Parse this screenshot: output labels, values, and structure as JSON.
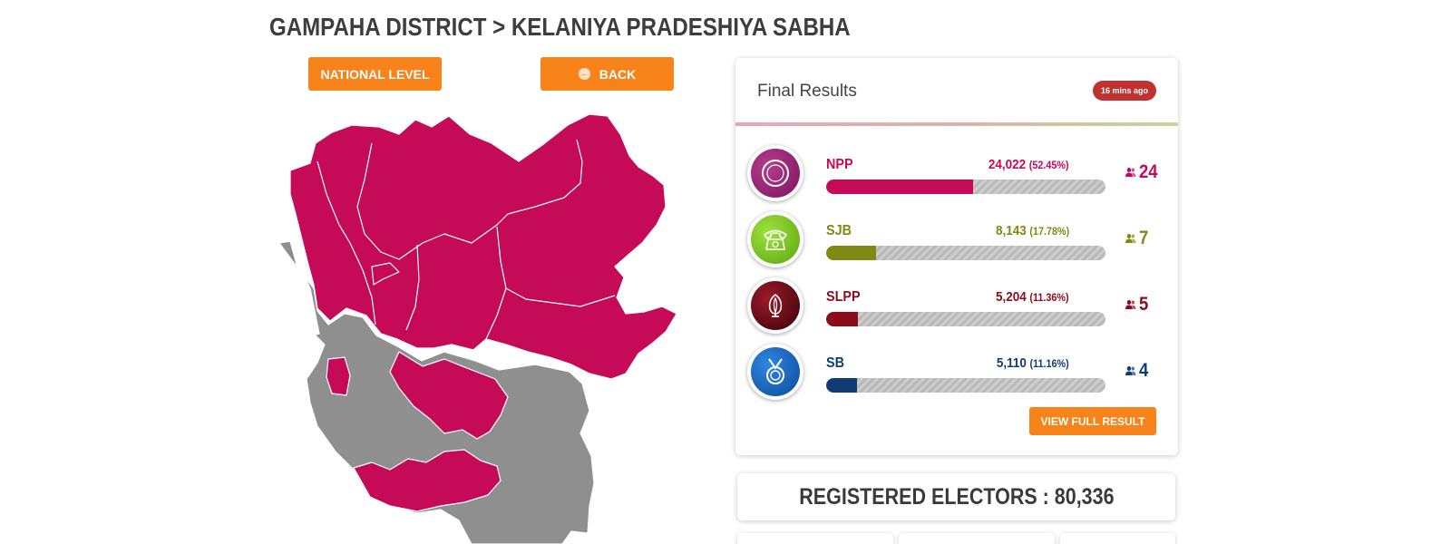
{
  "header": {
    "breadcrumb": "GAMPAHA DISTRICT > KELANIYA PRADESHIYA SABHA"
  },
  "buttons": {
    "national_level": "NATIONAL LEVEL",
    "back": "BACK",
    "view_full_result": "VIEW FULL RESULT"
  },
  "map": {
    "colors": {
      "winner": "#c50a57",
      "other": "#8f8f8f",
      "border": "#ffffff"
    }
  },
  "results": {
    "title": "Final Results",
    "updated": "16 mins ago",
    "parties": [
      {
        "name": "NPP",
        "votes": "24,022",
        "pct": "(52.45%)",
        "pct_value": 52.45,
        "seats": "24",
        "color": "#c50a57",
        "logo_icon": "compass-icon",
        "logo_bg": "#8e1f6e"
      },
      {
        "name": "SJB",
        "votes": "8,143",
        "pct": "(17.78%)",
        "pct_value": 17.78,
        "seats": "7",
        "color": "#7f8a12",
        "logo_icon": "telephone-icon",
        "logo_bg": "#7cc21d"
      },
      {
        "name": "SLPP",
        "votes": "5,204",
        "pct": "(11.36%)",
        "pct_value": 11.36,
        "seats": "5",
        "color": "#8b0c1a",
        "logo_icon": "flower-bud-icon",
        "logo_bg": "#6a0a14"
      },
      {
        "name": "SB",
        "votes": "5,110",
        "pct": "(11.16%)",
        "pct_value": 11.16,
        "seats": "4",
        "color": "#0f3d73",
        "logo_icon": "medal-icon",
        "logo_bg": "#1565c0"
      }
    ]
  },
  "electors": {
    "text": "REGISTERED ELECTORS : 80,336"
  }
}
